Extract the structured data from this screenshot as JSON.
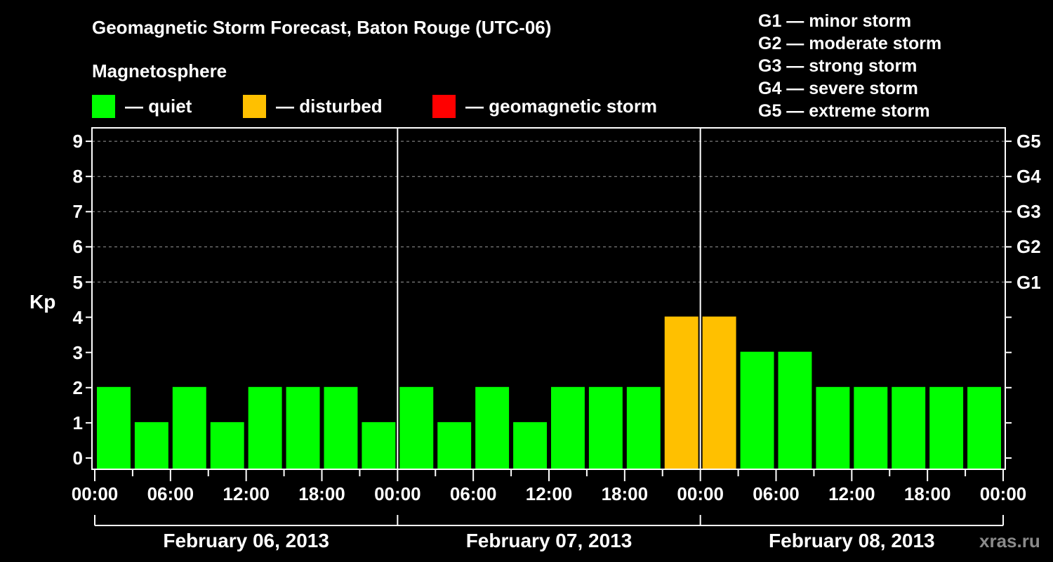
{
  "header": {
    "title": "Geomagnetic Storm Forecast, Baton Rouge (UTC-06)",
    "subtitle": "Magnetosphere"
  },
  "legend": [
    {
      "label": "— quiet",
      "color": "#00ff00"
    },
    {
      "label": "— disturbed",
      "color": "#ffc000"
    },
    {
      "label": "— geomagnetic storm",
      "color": "#ff0000"
    }
  ],
  "g_legend": [
    "G1 — minor storm",
    "G2 — moderate storm",
    "G3 — strong storm",
    "G4 — severe storm",
    "G5 — extreme storm"
  ],
  "watermark": "xras.ru",
  "chart_data": {
    "type": "bar",
    "title": "Geomagnetic Storm Forecast, Baton Rouge (UTC-06)",
    "ylabel": "Kp",
    "xlabel": "",
    "ylim": [
      0,
      9
    ],
    "y_ticks": [
      "0",
      "1",
      "2",
      "3",
      "4",
      "5",
      "6",
      "7",
      "8",
      "9"
    ],
    "right_axis_labels": [
      {
        "kp": 5,
        "label": "G1"
      },
      {
        "kp": 6,
        "label": "G2"
      },
      {
        "kp": 7,
        "label": "G3"
      },
      {
        "kp": 8,
        "label": "G4"
      },
      {
        "kp": 9,
        "label": "G5"
      }
    ],
    "x_tick_labels": [
      "00:00",
      "06:00",
      "12:00",
      "18:00",
      "00:00",
      "06:00",
      "12:00",
      "18:00",
      "00:00",
      "06:00",
      "12:00",
      "18:00",
      "00:00"
    ],
    "date_labels": [
      "February 06, 2013",
      "February 07, 2013",
      "February 08, 2013"
    ],
    "grid": "dashed horizontal at Kp 5-9",
    "interval_hours": 3,
    "categories": [
      "Feb 06 00-03",
      "Feb 06 03-06",
      "Feb 06 06-09",
      "Feb 06 09-12",
      "Feb 06 12-15",
      "Feb 06 15-18",
      "Feb 06 18-21",
      "Feb 06 21-24",
      "Feb 07 00-03",
      "Feb 07 03-06",
      "Feb 07 06-09",
      "Feb 07 09-12",
      "Feb 07 12-15",
      "Feb 07 15-18",
      "Feb 07 18-21",
      "Feb 07 21-24",
      "Feb 08 00-03",
      "Feb 08 03-06",
      "Feb 08 06-09",
      "Feb 08 09-12",
      "Feb 08 12-15",
      "Feb 08 15-18",
      "Feb 08 18-21",
      "Feb 08 21-24"
    ],
    "values": [
      2,
      1,
      2,
      1,
      2,
      2,
      2,
      1,
      2,
      1,
      2,
      1,
      2,
      2,
      2,
      4,
      4,
      3,
      3,
      2,
      2,
      2,
      2,
      2
    ],
    "status": [
      "quiet",
      "quiet",
      "quiet",
      "quiet",
      "quiet",
      "quiet",
      "quiet",
      "quiet",
      "quiet",
      "quiet",
      "quiet",
      "quiet",
      "quiet",
      "quiet",
      "quiet",
      "disturbed",
      "disturbed",
      "quiet",
      "quiet",
      "quiet",
      "quiet",
      "quiet",
      "quiet",
      "quiet"
    ],
    "colors": {
      "quiet": "#00ff00",
      "disturbed": "#ffc000",
      "storm": "#ff0000"
    }
  }
}
